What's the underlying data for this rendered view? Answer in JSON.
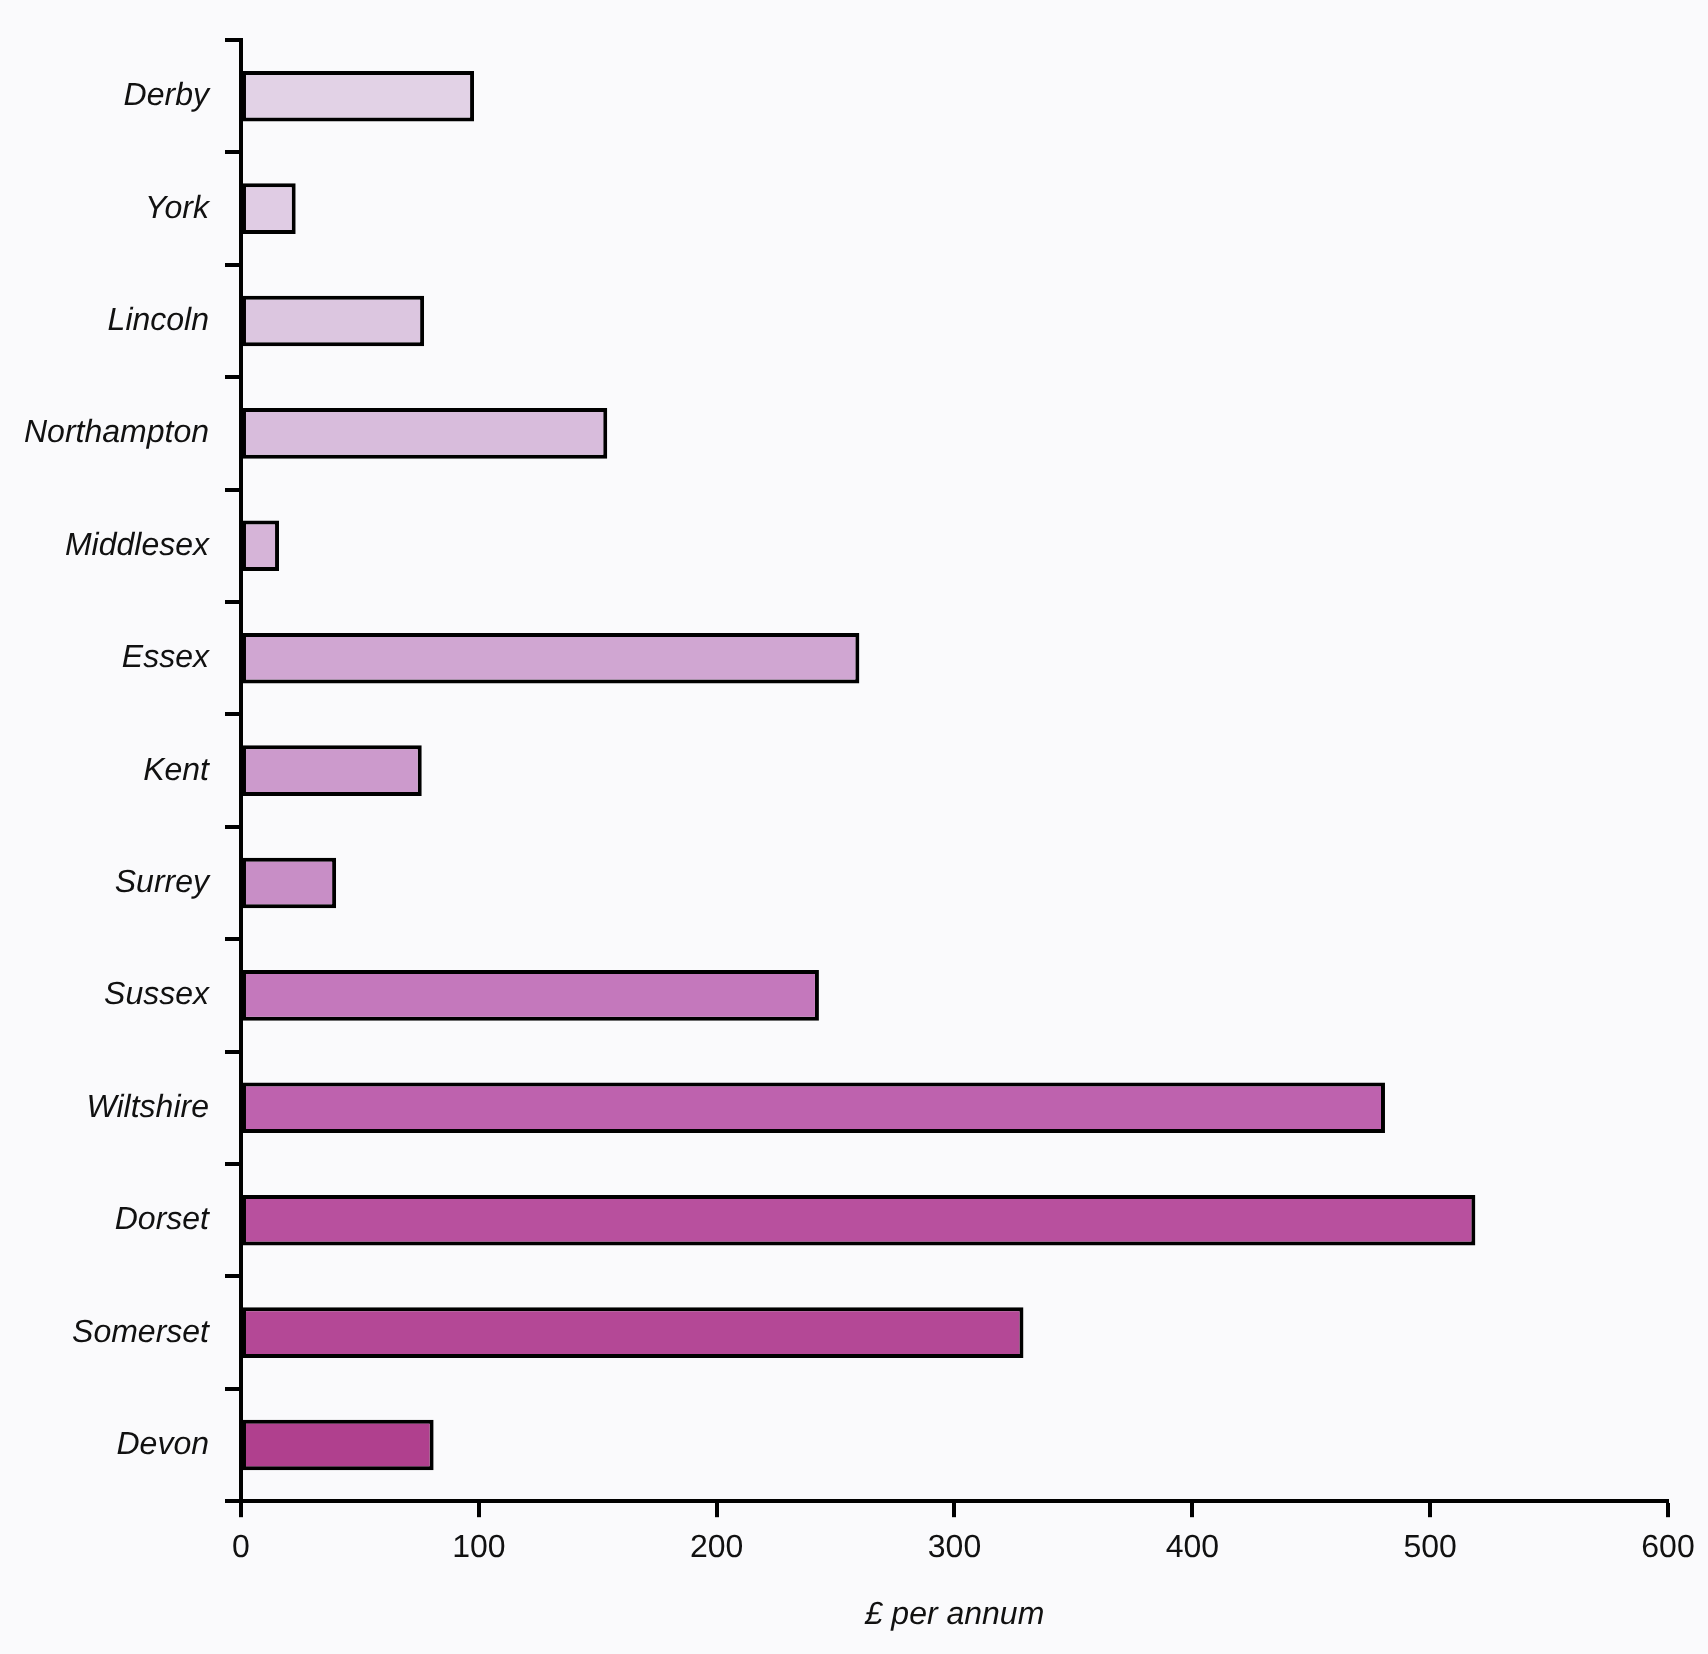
{
  "chart_data": {
    "type": "bar",
    "orientation": "horizontal",
    "xlabel": "£ per annum",
    "categories": [
      "Derby",
      "York",
      "Lincoln",
      "Northampton",
      "Middlesex",
      "Essex",
      "Kent",
      "Surrey",
      "Sussex",
      "Wiltshire",
      "Dorset",
      "Somerset",
      "Devon"
    ],
    "values": [
      98,
      23,
      77,
      154,
      16,
      260,
      76,
      40,
      243,
      481,
      519,
      329,
      81
    ],
    "colors": [
      "#e2d2e6",
      "#e0cce4",
      "#dcc6e0",
      "#d8bcdc",
      "#d6b4d8",
      "#d0a6d2",
      "#cc9acc",
      "#c88ec6",
      "#c478bc",
      "#be62ae",
      "#b8509e",
      "#b44896",
      "#b0408e"
    ],
    "xlim": [
      0,
      600
    ],
    "xticks": [
      0,
      100,
      200,
      300,
      400,
      500,
      600
    ],
    "grid": false,
    "legend": false
  }
}
